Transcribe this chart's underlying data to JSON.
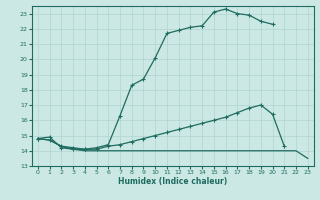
{
  "xlabel": "Humidex (Indice chaleur)",
  "bg_color": "#cce8e4",
  "grid_color": "#afd4d0",
  "line_color": "#1e6b60",
  "xlim": [
    -0.5,
    23.5
  ],
  "ylim": [
    13,
    23.5
  ],
  "xticks": [
    0,
    1,
    2,
    3,
    4,
    5,
    6,
    7,
    8,
    9,
    10,
    11,
    12,
    13,
    14,
    15,
    16,
    17,
    18,
    19,
    20,
    21,
    22,
    23
  ],
  "yticks": [
    13,
    14,
    15,
    16,
    17,
    18,
    19,
    20,
    21,
    22,
    23
  ],
  "line1_x": [
    0,
    1,
    2,
    3,
    4,
    5,
    6,
    7,
    8,
    9,
    10,
    11,
    12,
    13,
    14,
    15,
    16,
    17,
    18,
    19,
    20
  ],
  "line1_y": [
    14.8,
    14.9,
    14.2,
    14.1,
    14.1,
    14.2,
    14.4,
    16.3,
    18.3,
    18.7,
    20.1,
    21.7,
    21.9,
    22.1,
    22.2,
    23.1,
    23.3,
    23.0,
    22.9,
    22.5,
    22.3
  ],
  "line2_x": [
    0,
    1,
    2,
    3,
    4,
    5,
    6,
    7,
    8,
    9,
    10,
    11,
    12,
    13,
    14,
    15,
    16,
    17,
    18,
    19,
    20,
    21
  ],
  "line2_y": [
    14.8,
    14.7,
    14.3,
    14.2,
    14.1,
    14.1,
    14.3,
    14.4,
    14.6,
    14.8,
    15.0,
    15.2,
    15.4,
    15.6,
    15.8,
    16.0,
    16.2,
    16.5,
    16.8,
    17.0,
    16.4,
    14.3
  ],
  "line3_x": [
    0,
    1,
    2,
    3,
    4,
    5,
    6,
    7,
    8,
    9,
    10,
    11,
    12,
    13,
    14,
    15,
    16,
    17,
    18,
    19,
    20,
    21,
    22,
    23
  ],
  "line3_y": [
    14.8,
    14.7,
    14.3,
    14.1,
    14.0,
    14.0,
    14.0,
    14.0,
    14.0,
    14.0,
    14.0,
    14.0,
    14.0,
    14.0,
    14.0,
    14.0,
    14.0,
    14.0,
    14.0,
    14.0,
    14.0,
    14.0,
    14.0,
    13.5
  ]
}
